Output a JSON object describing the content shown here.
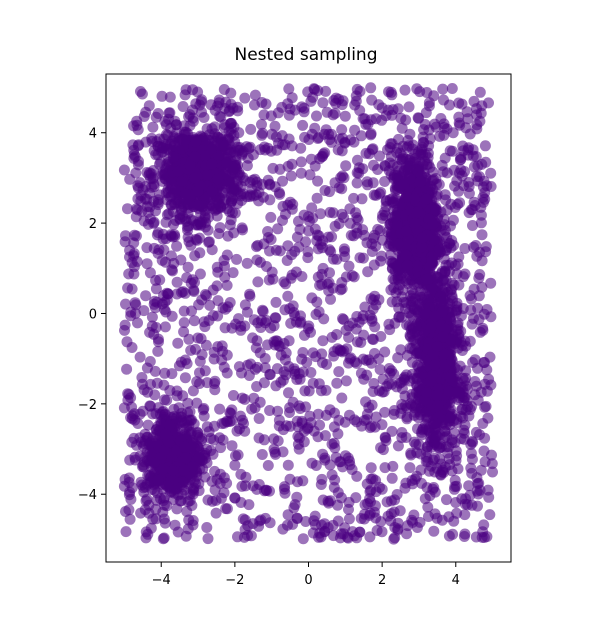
{
  "chart_data": {
    "type": "scatter",
    "title": "Nested sampling",
    "xlabel": "",
    "ylabel": "",
    "xlim": [
      -5.5,
      5.5
    ],
    "ylim": [
      -5.5,
      5.3
    ],
    "xticks": [
      -4,
      -2,
      0,
      2,
      4
    ],
    "yticks": [
      -4,
      -2,
      0,
      2,
      4
    ],
    "xtick_labels": [
      "−4",
      "−2",
      "0",
      "2",
      "4"
    ],
    "ytick_labels": [
      "−4",
      "−2",
      "0",
      "2",
      "4"
    ],
    "grid": false,
    "marker_color": "#4b0082",
    "marker_alpha": 0.55,
    "sampling_bounds": {
      "x": [
        -5,
        5
      ],
      "y": [
        -5,
        5
      ]
    },
    "clusters": [
      {
        "center": [
          -3.0,
          3.1
        ],
        "spread": [
          0.9,
          0.8
        ]
      },
      {
        "center": [
          -3.7,
          -3.1
        ],
        "spread": [
          0.7,
          0.8
        ]
      },
      {
        "center": [
          2.9,
          1.9
        ],
        "spread": [
          0.55,
          1.4
        ]
      },
      {
        "center": [
          3.5,
          -1.2
        ],
        "spread": [
          0.5,
          1.6
        ]
      }
    ]
  }
}
